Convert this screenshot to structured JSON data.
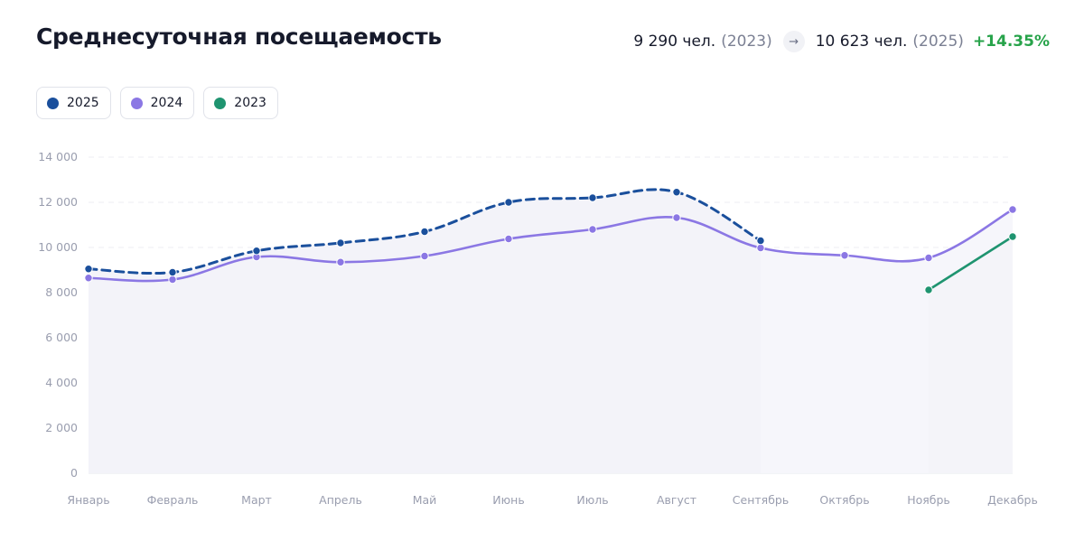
{
  "title": "Среднесуточная посещаемость",
  "summary": {
    "from_value": "9 290 чел.",
    "from_year": "(2023)",
    "to_value": "10 623 чел.",
    "to_year": "(2025)",
    "change": "+14.35%"
  },
  "legend": [
    {
      "label": "2025",
      "color": "#1a4f9c"
    },
    {
      "label": "2024",
      "color": "#8b77e4"
    },
    {
      "label": "2023",
      "color": "#1f9470"
    }
  ],
  "chart_data": {
    "type": "line",
    "title": "Среднесуточная посещаемость",
    "xlabel": "",
    "ylabel": "",
    "ylim": [
      0,
      14000
    ],
    "y_ticks": [
      0,
      2000,
      4000,
      6000,
      8000,
      10000,
      12000,
      14000
    ],
    "y_tick_labels": [
      "0",
      "2 000",
      "4 000",
      "6 000",
      "8 000",
      "10 000",
      "12 000",
      "14 000"
    ],
    "categories": [
      "Январь",
      "Февраль",
      "Март",
      "Апрель",
      "Май",
      "Июнь",
      "Июль",
      "Август",
      "Сентябрь",
      "Октябрь",
      "Ноябрь",
      "Декабрь"
    ],
    "grid": true,
    "legend_position": "top-left",
    "series": [
      {
        "name": "2025",
        "color": "#1a4f9c",
        "style": "dashed",
        "values": [
          9050,
          8900,
          9850,
          10200,
          10700,
          12000,
          12200,
          12450,
          10300,
          null,
          null,
          null
        ]
      },
      {
        "name": "2024",
        "color": "#8b77e4",
        "style": "solid",
        "values": [
          8650,
          8580,
          9580,
          9350,
          9620,
          10380,
          10800,
          11320,
          9980,
          9650,
          9540,
          11680
        ]
      },
      {
        "name": "2023",
        "color": "#1f9470",
        "style": "solid",
        "values": [
          null,
          null,
          null,
          null,
          null,
          null,
          null,
          null,
          null,
          null,
          8120,
          10480
        ]
      }
    ]
  }
}
